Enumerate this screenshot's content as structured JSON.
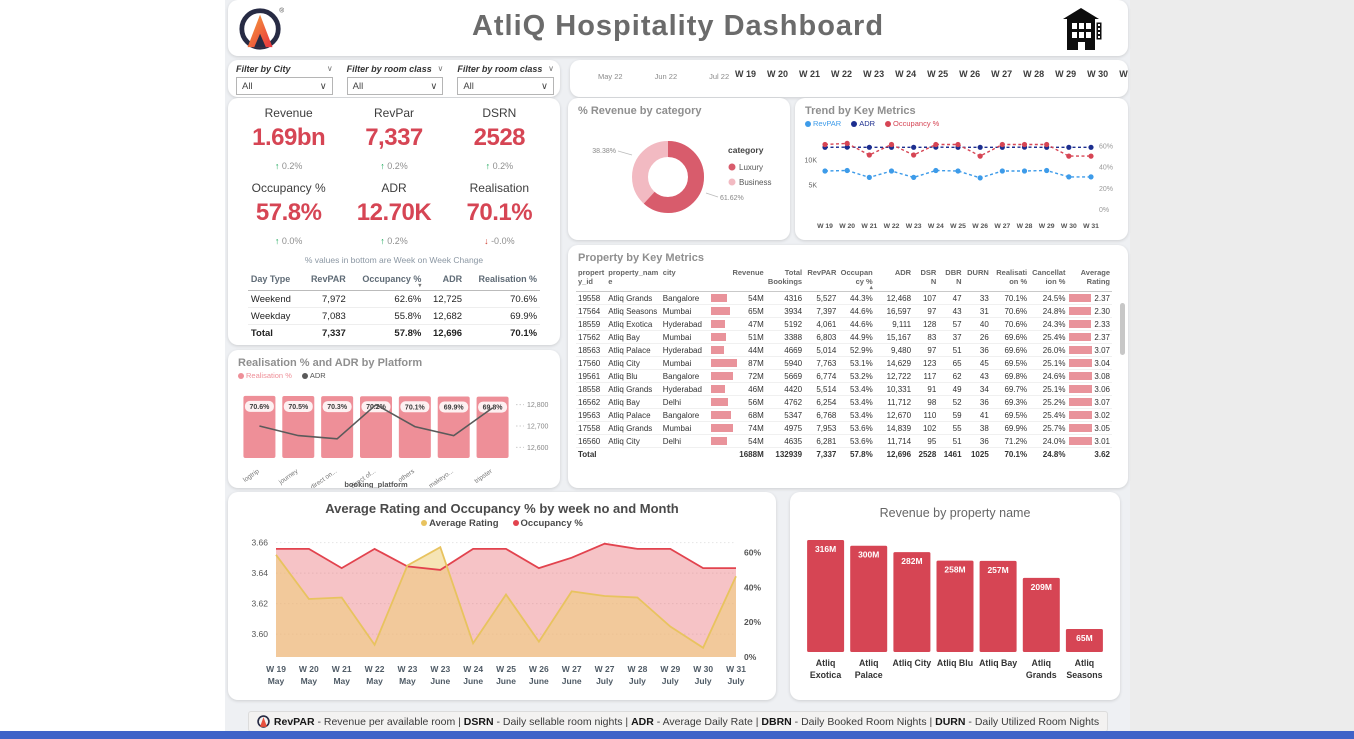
{
  "page": {
    "title": "AtliQ Hospitality Dashboard"
  },
  "filters": [
    {
      "label": "Filter by City",
      "value": "All"
    },
    {
      "label": "Filter by room class",
      "value": "All"
    },
    {
      "label": "Filter by room class",
      "value": "All"
    }
  ],
  "period": {
    "months": [
      "May 22",
      "Jun 22",
      "Jul 22"
    ],
    "weeks": [
      "W 19",
      "W 20",
      "W 21",
      "W 22",
      "W 23",
      "W 24",
      "W 25",
      "W 26",
      "W 27",
      "W 28",
      "W 29",
      "W 30",
      "W 31"
    ]
  },
  "kpis": {
    "note": "% values in bottom are Week on Week Change",
    "cards": [
      {
        "label": "Revenue",
        "value": "1.69bn",
        "change": "0.2%",
        "direction": "up"
      },
      {
        "label": "RevPar",
        "value": "7,337",
        "change": "0.2%",
        "direction": "up"
      },
      {
        "label": "DSRN",
        "value": "2528",
        "change": "0.2%",
        "direction": "up"
      },
      {
        "label": "Occupancy %",
        "value": "57.8%",
        "change": "0.0%",
        "direction": "up"
      },
      {
        "label": "ADR",
        "value": "12.70K",
        "change": "0.2%",
        "direction": "up"
      },
      {
        "label": "Realisation",
        "value": "70.1%",
        "change": "-0.0%",
        "direction": "down"
      }
    ]
  },
  "day_type_table": {
    "headers": [
      "Day Type",
      "RevPAR",
      "Occupancy %",
      "ADR",
      "Realisation %"
    ],
    "sorted_column": "Occupancy %",
    "rows": [
      [
        "Weekend",
        "7,972",
        "62.6%",
        "12,725",
        "70.6%"
      ],
      [
        "Weekday",
        "7,083",
        "55.8%",
        "12,682",
        "69.9%"
      ],
      [
        "Total",
        "7,337",
        "57.8%",
        "12,696",
        "70.1%"
      ]
    ]
  },
  "property_table": {
    "title": "Property by Key Metrics",
    "headers": [
      "property_id",
      "property_name",
      "city",
      "Revenue",
      "Total Bookings",
      "RevPAR",
      "Occupancy %",
      "ADR",
      "DSRN",
      "DBRN",
      "DURN",
      "Realisation %",
      "Cancellation %",
      "Average Rating"
    ],
    "rows": [
      [
        "19558",
        "Atliq Grands",
        "Bangalore",
        "54M",
        "4316",
        "5,527",
        "44.3%",
        "12,468",
        "107",
        "47",
        "33",
        "70.1%",
        "24.5%",
        "2.37"
      ],
      [
        "17564",
        "Atliq Seasons",
        "Mumbai",
        "65M",
        "3934",
        "7,397",
        "44.6%",
        "16,597",
        "97",
        "43",
        "31",
        "70.6%",
        "24.8%",
        "2.30"
      ],
      [
        "18559",
        "Atliq Exotica",
        "Hyderabad",
        "47M",
        "5192",
        "4,061",
        "44.6%",
        "9,111",
        "128",
        "57",
        "40",
        "70.6%",
        "24.3%",
        "2.33"
      ],
      [
        "17562",
        "Atliq Bay",
        "Mumbai",
        "51M",
        "3388",
        "6,803",
        "44.9%",
        "15,167",
        "83",
        "37",
        "26",
        "69.6%",
        "25.4%",
        "2.37"
      ],
      [
        "18563",
        "Atliq Palace",
        "Hyderabad",
        "44M",
        "4669",
        "5,014",
        "52.9%",
        "9,480",
        "97",
        "51",
        "36",
        "69.6%",
        "26.0%",
        "3.07"
      ],
      [
        "17560",
        "Atliq City",
        "Mumbai",
        "87M",
        "5940",
        "7,763",
        "53.1%",
        "14,629",
        "123",
        "65",
        "45",
        "69.5%",
        "25.1%",
        "3.04"
      ],
      [
        "19561",
        "Atliq Blu",
        "Bangalore",
        "72M",
        "5669",
        "6,774",
        "53.2%",
        "12,722",
        "117",
        "62",
        "43",
        "69.8%",
        "24.6%",
        "3.08"
      ],
      [
        "18558",
        "Atliq Grands",
        "Hyderabad",
        "46M",
        "4420",
        "5,514",
        "53.4%",
        "10,331",
        "91",
        "49",
        "34",
        "69.7%",
        "25.1%",
        "3.06"
      ],
      [
        "16562",
        "Atliq Bay",
        "Delhi",
        "56M",
        "4762",
        "6,254",
        "53.4%",
        "11,712",
        "98",
        "52",
        "36",
        "69.3%",
        "25.2%",
        "3.07"
      ],
      [
        "19563",
        "Atliq Palace",
        "Bangalore",
        "68M",
        "5347",
        "6,768",
        "53.4%",
        "12,670",
        "110",
        "59",
        "41",
        "69.5%",
        "25.4%",
        "3.02"
      ],
      [
        "17558",
        "Atliq Grands",
        "Mumbai",
        "74M",
        "4975",
        "7,953",
        "53.6%",
        "14,839",
        "102",
        "55",
        "38",
        "69.9%",
        "25.7%",
        "3.05"
      ],
      [
        "16560",
        "Atliq City",
        "Delhi",
        "54M",
        "4635",
        "6,281",
        "53.6%",
        "11,714",
        "95",
        "51",
        "36",
        "71.2%",
        "24.0%",
        "3.01"
      ]
    ],
    "revenue_bar_values": [
      54,
      65,
      47,
      51,
      44,
      87,
      72,
      46,
      56,
      68,
      74,
      54
    ],
    "rating_bar_values": [
      2.37,
      2.3,
      2.33,
      2.37,
      3.07,
      3.04,
      3.08,
      3.06,
      3.07,
      3.02,
      3.05,
      3.01
    ],
    "total": [
      "Total",
      "",
      "",
      "1688M",
      "132939",
      "7,337",
      "57.8%",
      "12,696",
      "2528",
      "1461",
      "1025",
      "70.1%",
      "24.8%",
      "3.62"
    ]
  },
  "chart_data": [
    {
      "type": "pie",
      "title": "% Revenue by category",
      "legend_title": "category",
      "labels": [
        "Luxury",
        "Business"
      ],
      "values": [
        61.62,
        38.38
      ],
      "display_values": [
        "61.62%",
        "38.38%"
      ],
      "colors": [
        "#d85c6c",
        "#f2bac2"
      ],
      "legend_position": "right"
    },
    {
      "type": "line",
      "title": "Trend by Key Metrics",
      "x": [
        "W 19",
        "W 20",
        "W 21",
        "W 22",
        "W 23",
        "W 24",
        "W 25",
        "W 26",
        "W 27",
        "W 28",
        "W 29",
        "W 30",
        "W 31"
      ],
      "series": [
        {
          "name": "RevPAR",
          "axis": "left",
          "color": "#3d9be9",
          "values": [
            7.9,
            8.0,
            6.6,
            7.9,
            6.6,
            8.0,
            7.9,
            6.5,
            7.9,
            7.9,
            8.0,
            6.7,
            6.7
          ],
          "unit": "K"
        },
        {
          "name": "ADR",
          "axis": "left",
          "color": "#1c2e8f",
          "values": [
            12.7,
            12.72,
            12.7,
            12.71,
            12.7,
            12.72,
            12.7,
            12.7,
            12.71,
            12.72,
            12.71,
            12.7,
            12.7
          ],
          "unit": "K"
        },
        {
          "name": "Occupancy %",
          "axis": "right",
          "color": "#d64554",
          "values": [
            62,
            63,
            52,
            62,
            52,
            62,
            62,
            51,
            62,
            62,
            62,
            51,
            51
          ],
          "unit": "%"
        }
      ],
      "left_axis": {
        "ticks": [
          "10K",
          "5K"
        ],
        "range": [
          0,
          15
        ]
      },
      "right_axis": {
        "ticks": [
          "60%",
          "40%",
          "20%",
          "0%"
        ],
        "tick_values": [
          60,
          40,
          20,
          0
        ],
        "range": [
          0,
          70
        ]
      },
      "line_style": "dashed"
    },
    {
      "type": "bar",
      "title": "Realisation % and ADR by Platform",
      "xlabel": "booking_platform",
      "categories": [
        "logtrip",
        "journey",
        "direct on...",
        "direct of...",
        "others",
        "makeyo...",
        "tripster"
      ],
      "series": [
        {
          "name": "Realisation %",
          "kind": "bar",
          "color": "#ee8f98",
          "values": [
            70.6,
            70.5,
            70.3,
            70.2,
            70.1,
            69.9,
            69.8
          ],
          "labels": [
            "70.6%",
            "70.5%",
            "70.3%",
            "70.2%",
            "70.1%",
            "69.9%",
            "69.8%"
          ]
        },
        {
          "name": "ADR",
          "kind": "line",
          "color": "#5a5a5a",
          "values": [
            12700,
            12655,
            12640,
            12800,
            12697,
            12655,
            12785
          ]
        }
      ],
      "right_axis": {
        "ticks": [
          "12,800",
          "12,700",
          "12,600"
        ],
        "tick_values": [
          12800,
          12700,
          12600
        ],
        "range": [
          12550,
          12850
        ]
      }
    },
    {
      "type": "area",
      "title": "Average Rating and Occupancy % by week no and Month",
      "categories": [
        [
          "W 19",
          "May"
        ],
        [
          "W 20",
          "May"
        ],
        [
          "W 21",
          "May"
        ],
        [
          "W 22",
          "May"
        ],
        [
          "W 23",
          "May"
        ],
        [
          "W 23",
          "June"
        ],
        [
          "W 24",
          "June"
        ],
        [
          "W 25",
          "June"
        ],
        [
          "W 26",
          "June"
        ],
        [
          "W 27",
          "June"
        ],
        [
          "W 27",
          "July"
        ],
        [
          "W 28",
          "July"
        ],
        [
          "W 29",
          "July"
        ],
        [
          "W 30",
          "July"
        ],
        [
          "W 31",
          "July"
        ]
      ],
      "series": [
        {
          "name": "Average Rating",
          "axis": "left",
          "color": "#e8c35f",
          "fill": "rgba(238,205,120,0.55)",
          "values": [
            3.652,
            3.623,
            3.624,
            3.593,
            3.645,
            3.657,
            3.594,
            3.626,
            3.595,
            3.628,
            3.625,
            3.624,
            3.605,
            3.591,
            3.638
          ]
        },
        {
          "name": "Occupancy %",
          "axis": "right",
          "color": "#e2434e",
          "fill": "rgba(233,105,112,0.40)",
          "values": [
            62,
            62,
            51,
            62,
            52,
            50,
            62,
            62,
            51,
            57,
            65,
            62,
            62,
            51,
            51
          ]
        }
      ],
      "left_axis": {
        "ticks": [
          "3.66",
          "3.64",
          "3.62",
          "3.60"
        ],
        "tick_values": [
          3.66,
          3.64,
          3.62,
          3.6
        ],
        "range": [
          3.585,
          3.665
        ]
      },
      "right_axis": {
        "ticks": [
          "60%",
          "40%",
          "20%",
          "0%"
        ],
        "tick_values": [
          60,
          40,
          20,
          0
        ],
        "range": [
          0,
          70
        ]
      }
    },
    {
      "type": "bar",
      "title": "Revenue by property name",
      "categories": [
        "Atliq Exotica",
        "Atliq Palace",
        "Atliq City",
        "Atliq Blu",
        "Atliq Bay",
        "Atliq Grands",
        "Atliq Seasons"
      ],
      "values": [
        316,
        300,
        282,
        258,
        257,
        209,
        65
      ],
      "labels": [
        "316M",
        "300M",
        "282M",
        "258M",
        "257M",
        "209M",
        "65M"
      ],
      "color": "#d64554"
    }
  ],
  "footer": {
    "items": [
      {
        "term": "RevPAR",
        "desc": "Revenue per available room"
      },
      {
        "term": "DSRN",
        "desc": "Daily sellable room nights"
      },
      {
        "term": "ADR",
        "desc": "Average Daily Rate"
      },
      {
        "term": "DBRN",
        "desc": "Daily Booked Room Nights"
      },
      {
        "term": "DURN",
        "desc": "Daily Utilized Room Nights"
      }
    ]
  },
  "colors": {
    "accent": "#d64554",
    "pink_bar": "#ee8f98",
    "table_bar": "#e9939b",
    "green_up": "#13a454",
    "red_down": "#cf3f2f",
    "canvas_bg": "#eef0f3",
    "taskbar_blue": "#3f63c8"
  }
}
